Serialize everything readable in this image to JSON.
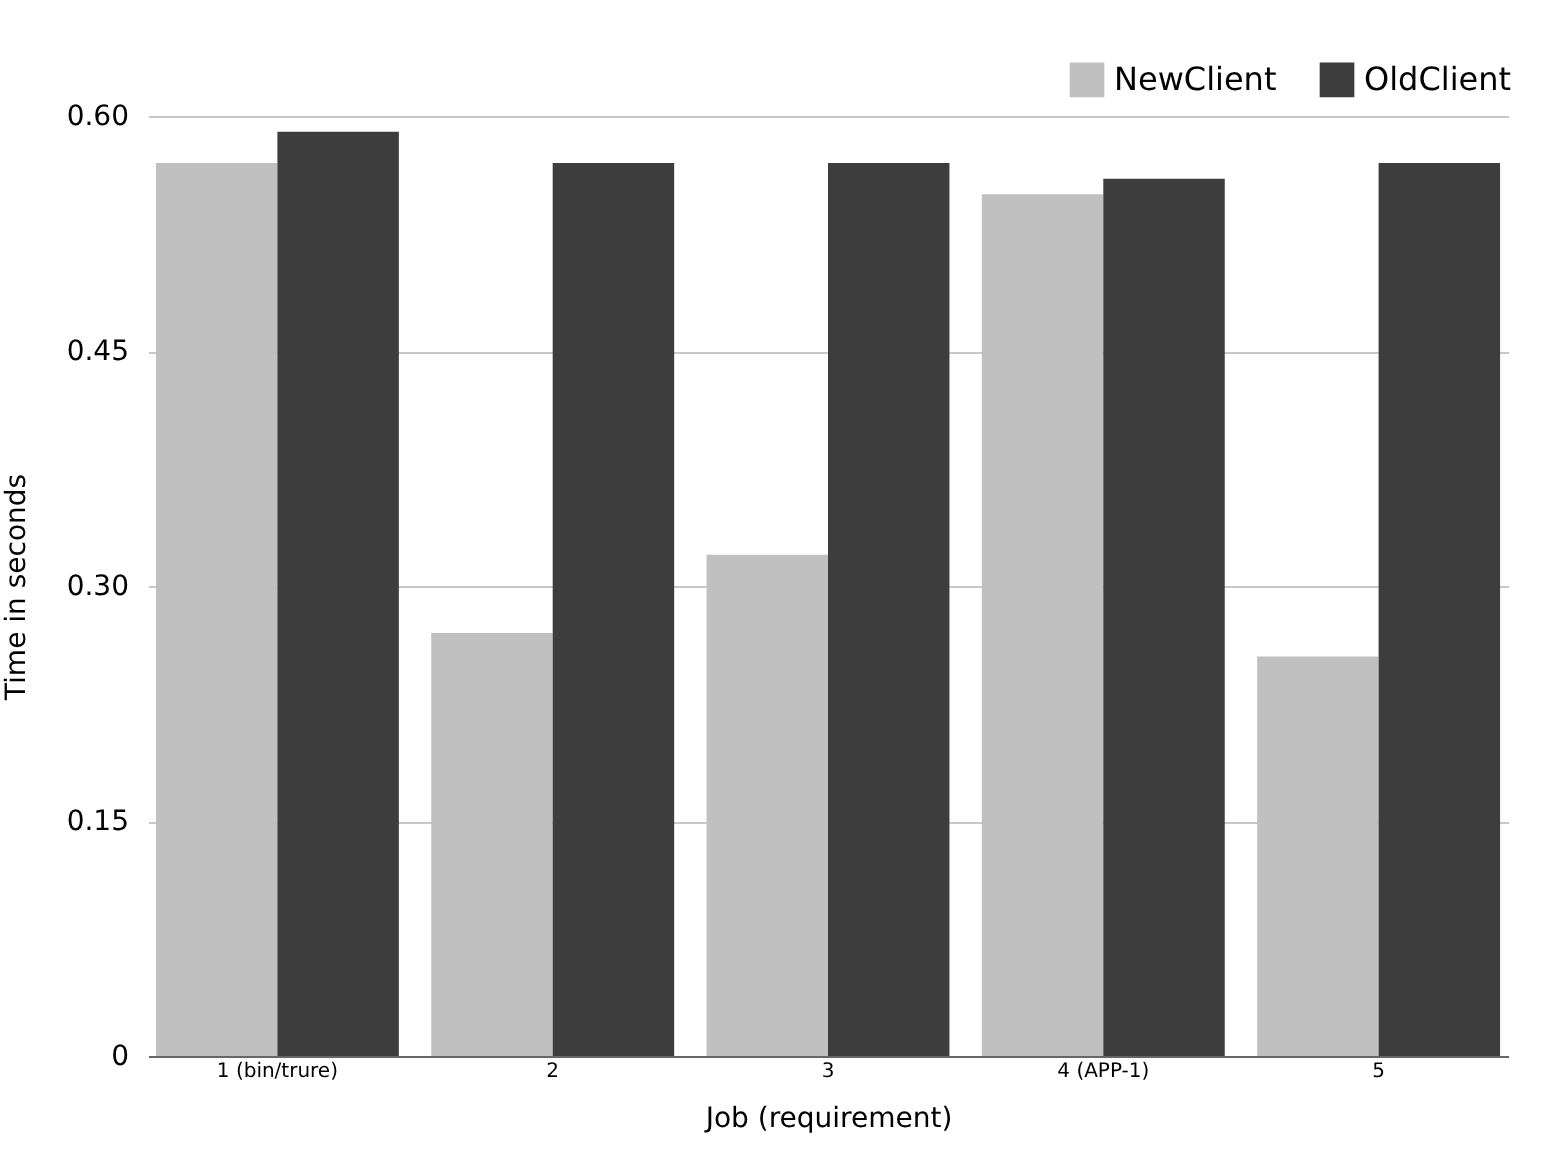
{
  "chart_data": {
    "type": "bar",
    "xlabel": "Job (requirement)",
    "ylabel": "Time in seconds",
    "categories": [
      "1 (bin/trure)",
      "2",
      "3",
      "4 (APP-1)",
      "5"
    ],
    "series": [
      {
        "name": "NewClient",
        "color": "#c0c0c0",
        "values": [
          0.57,
          0.27,
          0.32,
          0.55,
          0.255
        ]
      },
      {
        "name": "OldClient",
        "color": "#3d3d3d",
        "values": [
          0.59,
          0.57,
          0.57,
          0.56,
          0.57
        ]
      }
    ],
    "ylim": [
      0,
      0.6
    ],
    "yticks": [
      {
        "value": 0,
        "label": "0"
      },
      {
        "value": 0.15,
        "label": "0.15"
      },
      {
        "value": 0.3,
        "label": "0.30"
      },
      {
        "value": 0.45,
        "label": "0.45"
      },
      {
        "value": 0.6,
        "label": "0.60"
      }
    ],
    "grid": "y",
    "legend": "top right"
  }
}
